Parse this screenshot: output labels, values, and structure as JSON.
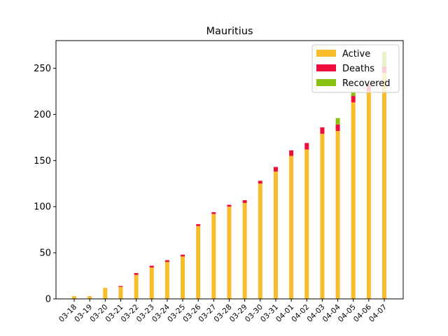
{
  "chart_data": {
    "type": "bar",
    "stacked": true,
    "title": "Mauritius",
    "xlabel": "",
    "ylabel": "",
    "ylim": [
      0,
      280
    ],
    "yticks": [
      0,
      50,
      100,
      150,
      200,
      250
    ],
    "grid": false,
    "legend_position": "top-right",
    "categories": [
      "03-18",
      "03-19",
      "03-20",
      "03-21",
      "03-22",
      "03-23",
      "03-24",
      "03-25",
      "03-26",
      "03-27",
      "03-28",
      "03-29",
      "03-30",
      "03-31",
      "04-01",
      "04-02",
      "04-03",
      "04-04",
      "04-05",
      "04-06",
      "04-07"
    ],
    "series": [
      {
        "name": "Active",
        "color": "#f9bc2c",
        "values": [
          3,
          3,
          12,
          13,
          26,
          34,
          40,
          46,
          79,
          92,
          100,
          104,
          125,
          138,
          155,
          162,
          179,
          182,
          213,
          225,
          245
        ]
      },
      {
        "name": "Deaths",
        "color": "#ef0d3e",
        "values": [
          0,
          0,
          0,
          1,
          2,
          2,
          2,
          2,
          2,
          2,
          2,
          3,
          3,
          5,
          6,
          7,
          7,
          7,
          7,
          7,
          7
        ]
      },
      {
        "name": "Recovered",
        "color": "#88c20f",
        "values": [
          0,
          0,
          0,
          0,
          0,
          0,
          0,
          0,
          0,
          0,
          0,
          0,
          0,
          0,
          0,
          0,
          0,
          7,
          5,
          2,
          16
        ]
      }
    ]
  }
}
